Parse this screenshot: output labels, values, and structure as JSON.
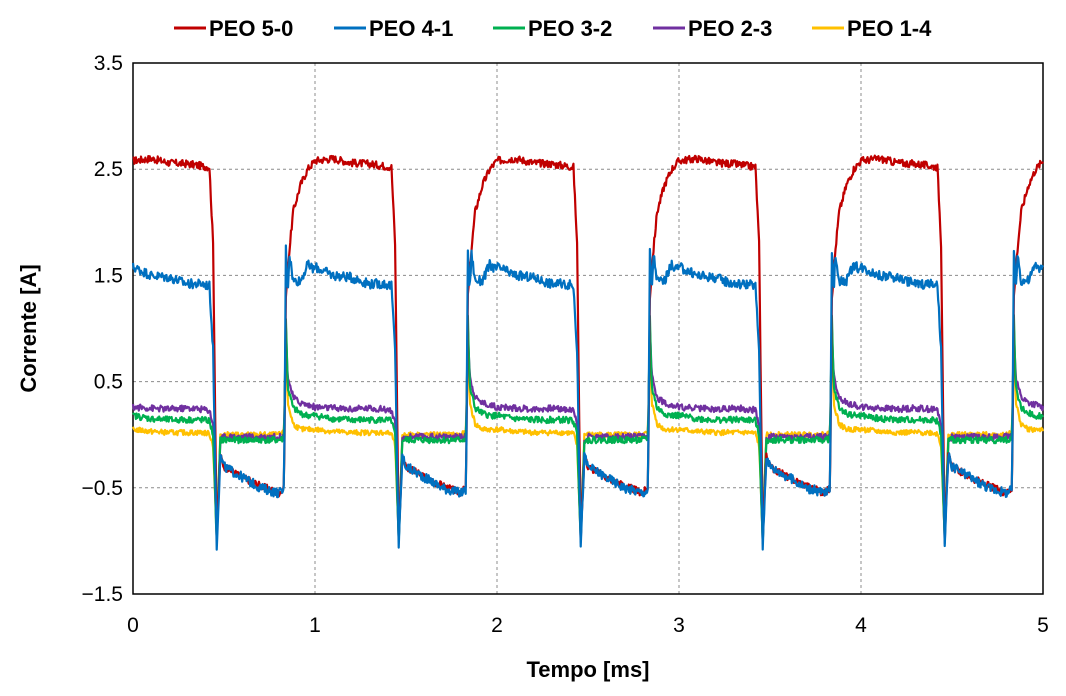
{
  "chart_data": {
    "type": "line",
    "title": "",
    "xlabel": "Tempo [ms]",
    "ylabel": "Corrente [A]",
    "xlim": [
      0,
      5
    ],
    "ylim": [
      -1.5,
      3.5
    ],
    "xticks": [
      0,
      1,
      2,
      3,
      4,
      5
    ],
    "xtick_labels": [
      "0",
      "1",
      "2",
      "3",
      "4",
      "5"
    ],
    "yticks": [
      -1.5,
      -0.5,
      0.5,
      1.5,
      2.5,
      3.5
    ],
    "ytick_labels": [
      "−1.5",
      "−0.5",
      "0.5",
      "1.5",
      "2.5",
      "3.5"
    ],
    "grid": true,
    "legend_position": "top",
    "period_ms": 1.0,
    "series": [
      {
        "name": "PEO 5-0",
        "color": "#c00000",
        "x": [
          0.0,
          0.1,
          0.2,
          0.3,
          0.38,
          0.42,
          0.44,
          0.46,
          0.48,
          0.5,
          0.6,
          0.7,
          0.8,
          0.83,
          0.84,
          0.86,
          0.88,
          0.92,
          0.96,
          1.0
        ],
        "y": [
          2.58,
          2.6,
          2.56,
          2.55,
          2.53,
          2.52,
          1.8,
          -0.95,
          -0.2,
          -0.3,
          -0.4,
          -0.48,
          -0.55,
          -0.5,
          1.3,
          1.75,
          2.1,
          2.35,
          2.5,
          2.58
        ]
      },
      {
        "name": "PEO 4-1",
        "color": "#0070c0",
        "x": [
          0.0,
          0.1,
          0.2,
          0.3,
          0.38,
          0.42,
          0.44,
          0.46,
          0.48,
          0.5,
          0.6,
          0.7,
          0.8,
          0.83,
          0.84,
          0.85,
          0.86,
          0.88,
          0.92,
          0.96,
          1.0
        ],
        "y": [
          1.58,
          1.5,
          1.48,
          1.42,
          1.42,
          1.4,
          0.8,
          -1.05,
          -0.2,
          -0.3,
          -0.4,
          -0.5,
          -0.55,
          -0.52,
          1.75,
          1.35,
          1.7,
          1.45,
          1.45,
          1.6,
          1.55
        ]
      },
      {
        "name": "PEO 3-2",
        "color": "#00b050",
        "x": [
          0.0,
          0.1,
          0.2,
          0.3,
          0.38,
          0.42,
          0.44,
          0.46,
          0.48,
          0.5,
          0.6,
          0.7,
          0.8,
          0.83,
          0.84,
          0.85,
          0.88,
          0.92,
          0.96,
          1.0
        ],
        "y": [
          0.18,
          0.15,
          0.14,
          0.14,
          0.14,
          0.13,
          0.0,
          -1.0,
          -0.05,
          -0.05,
          -0.05,
          -0.05,
          -0.05,
          -0.04,
          1.1,
          0.45,
          0.25,
          0.2,
          0.18,
          0.18
        ]
      },
      {
        "name": "PEO 2-3",
        "color": "#7030a0",
        "x": [
          0.0,
          0.1,
          0.2,
          0.3,
          0.38,
          0.42,
          0.44,
          0.46,
          0.48,
          0.5,
          0.6,
          0.7,
          0.8,
          0.83,
          0.84,
          0.85,
          0.88,
          0.92,
          0.96,
          1.0
        ],
        "y": [
          0.26,
          0.25,
          0.24,
          0.25,
          0.24,
          0.23,
          0.1,
          -1.0,
          -0.05,
          -0.02,
          -0.02,
          -0.02,
          -0.02,
          -0.02,
          1.0,
          0.55,
          0.35,
          0.3,
          0.28,
          0.26
        ]
      },
      {
        "name": "PEO 1-4",
        "color": "#ffc000",
        "x": [
          0.0,
          0.1,
          0.2,
          0.3,
          0.38,
          0.42,
          0.44,
          0.46,
          0.48,
          0.5,
          0.6,
          0.7,
          0.8,
          0.83,
          0.84,
          0.85,
          0.88,
          0.92,
          0.96,
          1.0
        ],
        "y": [
          0.05,
          0.03,
          0.02,
          0.02,
          0.02,
          0.01,
          -0.1,
          -0.95,
          0.0,
          0.0,
          0.0,
          0.0,
          0.0,
          0.02,
          1.0,
          0.3,
          0.1,
          0.05,
          0.05,
          0.05
        ]
      }
    ]
  }
}
